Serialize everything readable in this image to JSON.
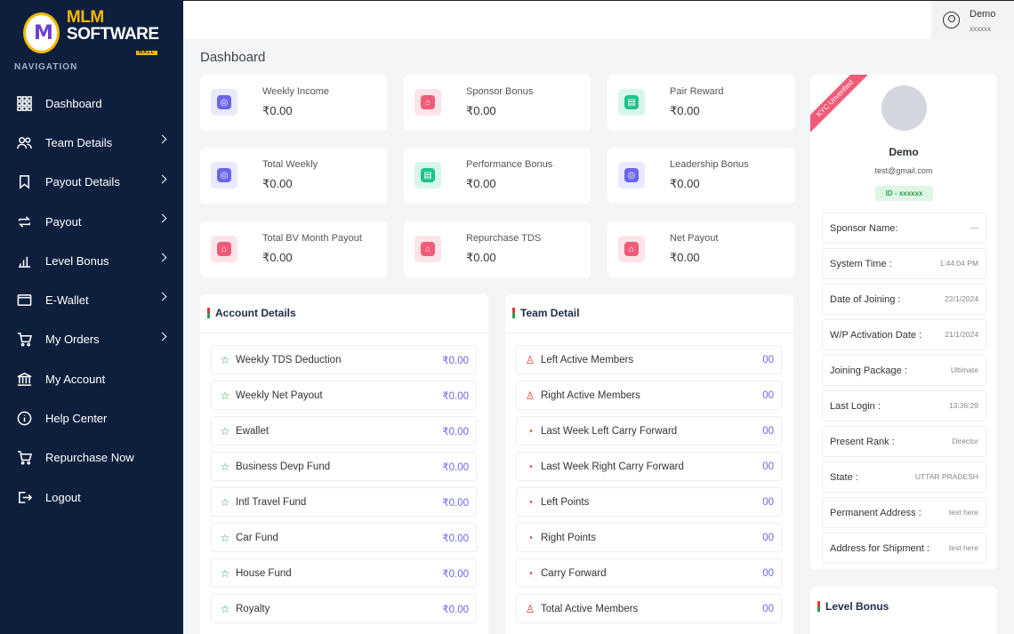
{
  "brand": {
    "mlm": "MLM",
    "software": "SOFTWARE",
    "tag": "MALL"
  },
  "nav_heading": "NAVIGATION",
  "nav": [
    {
      "label": "Dashboard",
      "icon": "grid-icon",
      "chev": false
    },
    {
      "label": "Team Details",
      "icon": "users-icon",
      "chev": true
    },
    {
      "label": "Payout Details",
      "icon": "bookmark-icon",
      "chev": true
    },
    {
      "label": "Payout",
      "icon": "repeat-icon",
      "chev": true
    },
    {
      "label": "Level Bonus",
      "icon": "bar-chart-icon",
      "chev": true
    },
    {
      "label": "E-Wallet",
      "icon": "wallet-icon",
      "chev": true
    },
    {
      "label": "My Orders",
      "icon": "cart-icon",
      "chev": true
    },
    {
      "label": "My Account",
      "icon": "bank-icon",
      "chev": false
    },
    {
      "label": "Help Center",
      "icon": "info-icon",
      "chev": false
    },
    {
      "label": "Repurchase Now",
      "icon": "cart-icon",
      "chev": false
    },
    {
      "label": "Logout",
      "icon": "logout-icon",
      "chev": false
    }
  ],
  "user": {
    "name": "Demo",
    "sub": "xxxxxx"
  },
  "page_title": "Dashboard",
  "stats": [
    {
      "title": "Weekly Income",
      "value": "₹0.00",
      "color": "purple"
    },
    {
      "title": "Sponsor Bonus",
      "value": "₹0.00",
      "color": "pink"
    },
    {
      "title": "Pair Reward",
      "value": "₹0.00",
      "color": "green"
    },
    {
      "title": "Total Weekly",
      "value": "₹0.00",
      "color": "purple"
    },
    {
      "title": "Performance Bonus",
      "value": "₹0.00",
      "color": "green"
    },
    {
      "title": "Leadership Bonus",
      "value": "₹0.00",
      "color": "purple"
    },
    {
      "title": "Total BV Month Payout",
      "value": "₹0.00",
      "color": "pink"
    },
    {
      "title": "Repurchase TDS",
      "value": "₹0.00",
      "color": "pink"
    },
    {
      "title": "Net Payout",
      "value": "₹0.00",
      "color": "pink"
    }
  ],
  "account": {
    "title": "Account Details",
    "rows": [
      {
        "label": "Weekly TDS Deduction",
        "value": "₹0.00"
      },
      {
        "label": "Weekly Net Payout",
        "value": "₹0.00"
      },
      {
        "label": "Ewallet",
        "value": "₹0.00"
      },
      {
        "label": "Business Devp Fund",
        "value": "₹0.00"
      },
      {
        "label": "Intl Travel Fund",
        "value": "₹0.00"
      },
      {
        "label": "Car Fund",
        "value": "₹0.00"
      },
      {
        "label": "House Fund",
        "value": "₹0.00"
      },
      {
        "label": "Royalty",
        "value": "₹0.00"
      }
    ]
  },
  "team": {
    "title": "Team Detail",
    "rows": [
      {
        "label": "Left Active Members",
        "value": "00",
        "icon": "user-icon"
      },
      {
        "label": "Right Active Members",
        "value": "00",
        "icon": "user-icon"
      },
      {
        "label": "Last Week Left Carry Forward",
        "value": "00",
        "icon": "pie-icon"
      },
      {
        "label": "Last Week Right Carry Forward",
        "value": "00",
        "icon": "pie-icon"
      },
      {
        "label": "Left Points",
        "value": "00",
        "icon": "pie-icon"
      },
      {
        "label": "Right Points",
        "value": "00",
        "icon": "pie-icon"
      },
      {
        "label": "Carry Forward",
        "value": "00",
        "icon": "pie-icon"
      },
      {
        "label": "Total Active Members",
        "value": "00",
        "icon": "user-icon"
      }
    ]
  },
  "profile": {
    "ribbon": "KYC Unverified",
    "name": "Demo",
    "email": "test@gmail.com",
    "id": "ID - xxxxxx",
    "rows": [
      {
        "key": "Sponsor Name:",
        "value": "—"
      },
      {
        "key": "System Time :",
        "value": "1:44:04 PM"
      },
      {
        "key": "Date of Joining :",
        "value": "22/1/2024"
      },
      {
        "key": "W/P Activation Date :",
        "value": "21/1/2024"
      },
      {
        "key": "Joining Package :",
        "value": "Ultimate"
      },
      {
        "key": "Last Login :",
        "value": "13:36:29"
      },
      {
        "key": "Present Rank :",
        "value": "Director"
      },
      {
        "key": "State :",
        "value": "UTTAR PRADESH"
      },
      {
        "key": "Permanent Address :",
        "value": "test here"
      },
      {
        "key": "Address for Shipment :",
        "value": "test here"
      }
    ]
  },
  "level_bonus_title": "Level Bonus"
}
